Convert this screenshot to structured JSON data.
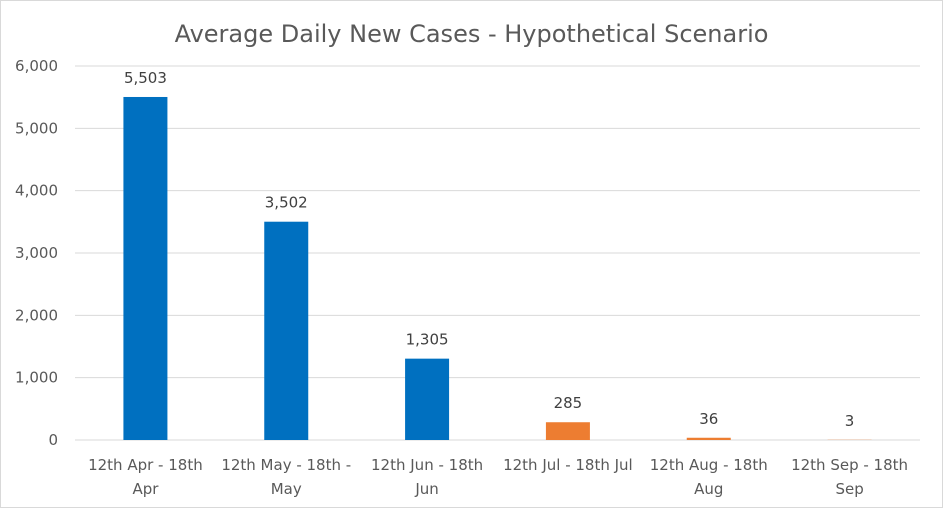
{
  "chart_data": {
    "type": "bar",
    "title": "Average Daily New Cases - Hypothetical Scenario",
    "categories": [
      [
        "12th Apr - 18th",
        "Apr"
      ],
      [
        "12th May - 18th -",
        "May"
      ],
      [
        "12th Jun - 18th",
        "Jun"
      ],
      [
        "12th Jul - 18th Jul"
      ],
      [
        "12th Aug - 18th",
        "Aug"
      ],
      [
        "12th Sep - 18th",
        "Sep"
      ]
    ],
    "values": [
      5503,
      3502,
      1305,
      285,
      36,
      3
    ],
    "data_labels": [
      "5,503",
      "3,502",
      "1,305",
      "285",
      "36",
      "3"
    ],
    "bar_colors": [
      "#0070c0",
      "#0070c0",
      "#0070c0",
      "#ed7d31",
      "#ed7d31",
      "#ed7d31"
    ],
    "ylim": [
      0,
      6000
    ],
    "yticks": [
      0,
      1000,
      2000,
      3000,
      4000,
      5000,
      6000
    ],
    "ytick_labels": [
      "0",
      "1,000",
      "2,000",
      "3,000",
      "4,000",
      "5,000",
      "6,000"
    ],
    "grid": true,
    "legend": "none",
    "gridline_color": "#d9d9d9"
  }
}
